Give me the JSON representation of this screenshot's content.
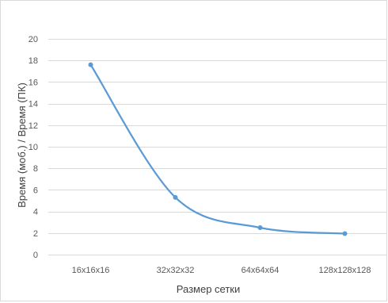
{
  "chart_data": {
    "type": "line",
    "smooth": true,
    "xlabel": "Размер сетки",
    "ylabel": "Время (моб.) / Время (ПК)",
    "categories": [
      "16x16x16",
      "32x32x32",
      "64x64x64",
      "128x128x128"
    ],
    "values": [
      17.6,
      5.3,
      2.5,
      1.95
    ],
    "ylim": [
      0,
      20
    ],
    "yticks": [
      0,
      2,
      4,
      6,
      8,
      10,
      12,
      14,
      16,
      18,
      20
    ],
    "grid": "horizontal",
    "legend": "none",
    "colors": {
      "line": "#5b9bd5",
      "grid": "#d9d9d9",
      "tick_text": "#595959",
      "axis_title": "#404040"
    }
  }
}
